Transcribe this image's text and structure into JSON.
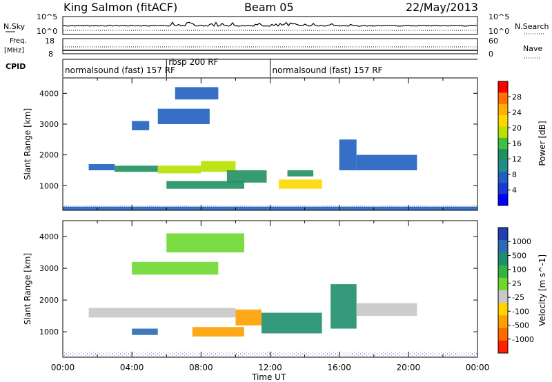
{
  "header": {
    "station": "King Salmon (fitACF)",
    "beam": "Beam 05",
    "date": "22/May/2013"
  },
  "top_panels": {
    "nsky_label": "N.Sky",
    "nsky_ticks": [
      "10^5",
      "10^0"
    ],
    "nsearch_label": "N.Search",
    "nsearch_ticks": [
      "10^5",
      "10^0"
    ],
    "freq_label": "Freq.",
    "freq_unit": "[MHz]",
    "freq_ticks": [
      "18",
      "8"
    ],
    "nave_label": "Nave",
    "nave_ticks": [
      "60",
      "0"
    ],
    "cpid_label": "CPID",
    "cpid_segments": [
      {
        "label": "normalsound (fast) 157 RF",
        "start": 0,
        "end": 6
      },
      {
        "label": "rbsp 200 RF",
        "start": 6,
        "end": 12
      },
      {
        "label": "normalsound (fast) 157 RF",
        "start": 12,
        "end": 24
      }
    ]
  },
  "colorbars": {
    "power": {
      "label": "Power [dB]",
      "ticks": [
        "28",
        "24",
        "20",
        "16",
        "12",
        "8",
        "4"
      ],
      "colors": [
        "#ff0000",
        "#ff7000",
        "#ffb000",
        "#ffd800",
        "#b8e000",
        "#40c040",
        "#209060",
        "#208c8c",
        "#2060c0",
        "#1838d8",
        "#0000ff"
      ]
    },
    "velocity": {
      "label": "Velocity [m s^-1]",
      "ticks": [
        "1000",
        "500",
        "100",
        "25",
        "-25",
        "-100",
        "-500",
        "-1000"
      ],
      "colors": [
        "#2040b0",
        "#2c6cb4",
        "#1f8e6e",
        "#33b43f",
        "#6ed830",
        "#c8c8c8",
        "#ffd400",
        "#ffa000",
        "#ff6a00",
        "#ff2000"
      ]
    }
  },
  "chart_data": [
    {
      "type": "heatmap",
      "title": "Power",
      "ylabel": "Slant Range [km]",
      "xlabel": "",
      "ylim": [
        200,
        4500
      ],
      "xlim": [
        0,
        24
      ],
      "yticks": [
        "1000",
        "2000",
        "3000",
        "4000"
      ],
      "legend": "right colorbar",
      "bands": [
        {
          "t0": 1.5,
          "t1": 3.0,
          "r0": 1500,
          "r1": 1700,
          "value": 8
        },
        {
          "t0": 3.0,
          "t1": 5.5,
          "r0": 1450,
          "r1": 1650,
          "value": 14
        },
        {
          "t0": 5.5,
          "t1": 8.0,
          "r0": 1400,
          "r1": 1650,
          "value": 18
        },
        {
          "t0": 8.0,
          "t1": 10.0,
          "r0": 1450,
          "r1": 1800,
          "value": 20
        },
        {
          "t0": 4.0,
          "t1": 5.0,
          "r0": 2800,
          "r1": 3100,
          "value": 6
        },
        {
          "t0": 5.5,
          "t1": 8.5,
          "r0": 3000,
          "r1": 3500,
          "value": 6
        },
        {
          "t0": 6.5,
          "t1": 9.0,
          "r0": 3800,
          "r1": 4200,
          "value": 5
        },
        {
          "t0": 6.0,
          "t1": 10.5,
          "r0": 900,
          "r1": 1150,
          "value": 12
        },
        {
          "t0": 9.5,
          "t1": 11.8,
          "r0": 1100,
          "r1": 1500,
          "value": 14
        },
        {
          "t0": 12.5,
          "t1": 15.0,
          "r0": 900,
          "r1": 1200,
          "value": 24
        },
        {
          "t0": 13.0,
          "t1": 14.5,
          "r0": 1300,
          "r1": 1500,
          "value": 12
        },
        {
          "t0": 16.0,
          "t1": 17.0,
          "r0": 1500,
          "r1": 2500,
          "value": 6
        },
        {
          "t0": 17.0,
          "t1": 20.5,
          "r0": 1500,
          "r1": 2000,
          "value": 6
        },
        {
          "t0": 0.0,
          "t1": 24.0,
          "r0": 200,
          "r1": 320,
          "value": 5
        }
      ]
    },
    {
      "type": "heatmap",
      "title": "Velocity",
      "ylabel": "Slant Range [km]",
      "xlabel": "Time UT",
      "ylim": [
        200,
        4500
      ],
      "xlim": [
        0,
        24
      ],
      "yticks": [
        "1000",
        "2000",
        "3000",
        "4000"
      ],
      "xticks": [
        "00:00",
        "04:00",
        "08:00",
        "12:00",
        "16:00",
        "20:00",
        "00:00"
      ],
      "legend": "right colorbar",
      "bands": [
        {
          "t0": 1.5,
          "t1": 10.0,
          "r0": 1450,
          "r1": 1750,
          "value": 0
        },
        {
          "t0": 4.0,
          "t1": 9.0,
          "r0": 2800,
          "r1": 3200,
          "value": 10
        },
        {
          "t0": 6.0,
          "t1": 10.5,
          "r0": 3500,
          "r1": 4100,
          "value": 20
        },
        {
          "t0": 7.5,
          "t1": 10.5,
          "r0": 850,
          "r1": 1150,
          "value": -250
        },
        {
          "t0": 10.0,
          "t1": 11.5,
          "r0": 1200,
          "r1": 1700,
          "value": -400
        },
        {
          "t0": 11.5,
          "t1": 15.0,
          "r0": 950,
          "r1": 1600,
          "value": 200
        },
        {
          "t0": 15.5,
          "t1": 17.0,
          "r0": 1100,
          "r1": 2500,
          "value": 200
        },
        {
          "t0": 17.0,
          "t1": 20.5,
          "r0": 1500,
          "r1": 1900,
          "value": 0
        },
        {
          "t0": 4.0,
          "t1": 5.5,
          "r0": 900,
          "r1": 1100,
          "value": 600
        }
      ]
    }
  ]
}
